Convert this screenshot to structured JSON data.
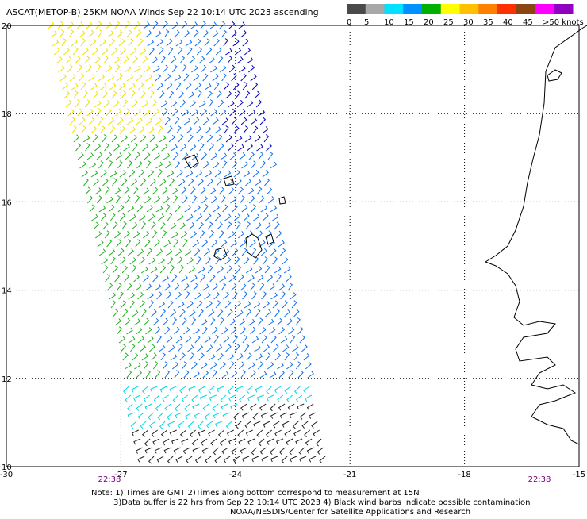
{
  "title": "ASCAT(METOP-B) 25KM NOAA Winds Sep 22 10:14 UTC 2023 ascending",
  "legend": {
    "colors": [
      "#4a4a4a",
      "#a8a8a8",
      "#00e0ff",
      "#0090ff",
      "#00b000",
      "#ffff00",
      "#ffc000",
      "#ff8000",
      "#ff3000",
      "#8b4513",
      "#ff00ff",
      "#9000c0"
    ],
    "labels": [
      "0",
      "5",
      "10",
      "15",
      "20",
      "25",
      "30",
      "35",
      "40",
      "45",
      ">50 knots"
    ]
  },
  "axes": {
    "lon_ticks": [
      -30,
      -27,
      -24,
      -21,
      -18,
      -15
    ],
    "lat_ticks": [
      20,
      18,
      16,
      14,
      12,
      10
    ]
  },
  "pass_times": [
    "22:38",
    "22:38"
  ],
  "notes": [
    "Note: 1) Times are GMT 2)Times along bottom correspond to measurement at 15N",
    "3)Data buffer is 22 hrs from Sep 22 10:14 UTC 2023 4) Black wind barbs indicate possible contamination",
    "NOAA/NESDIS/Center for Satellite Applications and Research"
  ]
}
